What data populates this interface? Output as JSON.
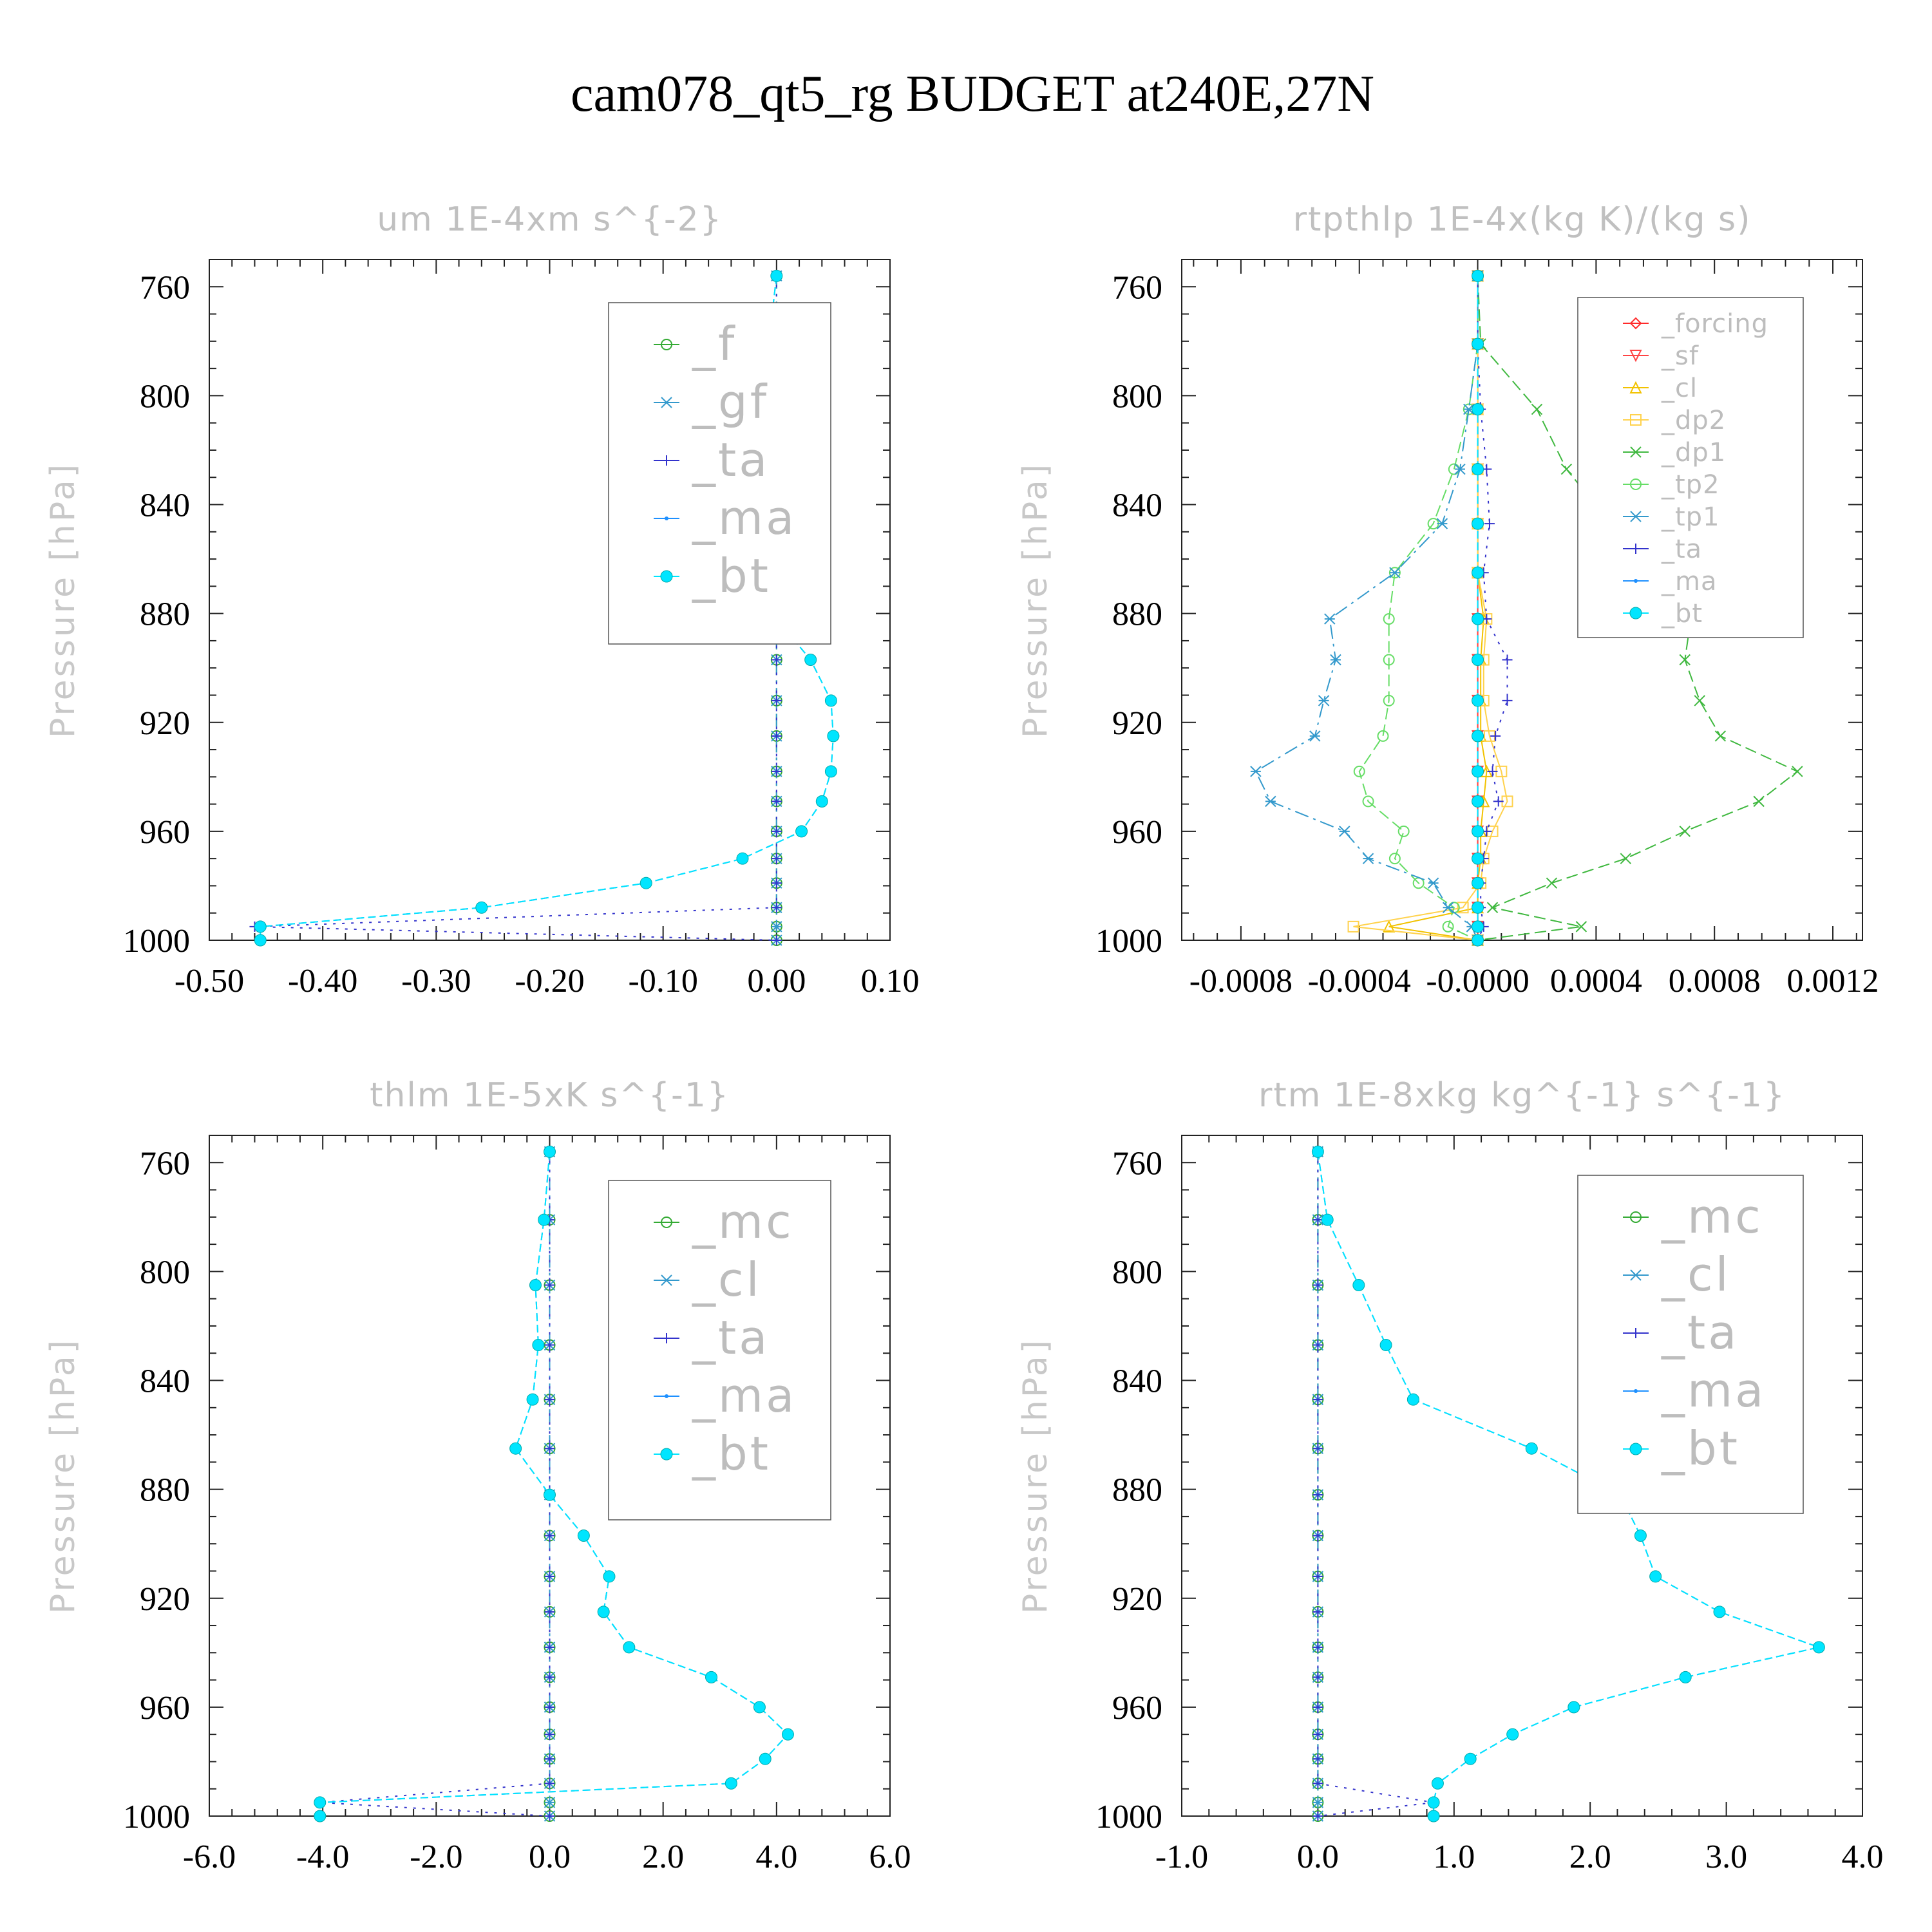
{
  "figure_title": "cam078_qt5_rg  BUDGET at240E,27N",
  "colors": {
    "bt": "#00e5ff",
    "ma": "#1e90ff",
    "ta": "#3333cc",
    "zero": "#33aa33",
    "legend_text": "#bdbdbd",
    "forcing": "#ff2a2a",
    "sf": "#ff4444",
    "cl_y": "#f2c200",
    "dp2": "#ffd24d",
    "dp1": "#3fb83f",
    "tp2": "#66dd66",
    "tp1": "#3399cc"
  },
  "chart_data": [
    {
      "type": "line",
      "title": "um  1E-4xm s^{-2}",
      "ylabel": "Pressure [hPa]",
      "xlim": [
        -0.5,
        0.1
      ],
      "ylim": [
        750,
        1000
      ],
      "xticks": [
        "-0.50",
        "-0.40",
        "-0.30",
        "-0.20",
        "-0.10",
        "0.00",
        "0.10"
      ],
      "xtick_values": [
        -0.5,
        -0.4,
        -0.3,
        -0.2,
        -0.1,
        0.0,
        0.1
      ],
      "yticks": [
        "760",
        "800",
        "840",
        "880",
        "920",
        "960",
        "1000"
      ],
      "legend": [
        "_f",
        "_gf",
        "_ta",
        "_ma",
        "_bt"
      ],
      "legend_size": "large",
      "levels": [
        756,
        781,
        805,
        827,
        847,
        865,
        882,
        897,
        912,
        925,
        938,
        949,
        960,
        970,
        979,
        988,
        995,
        1000
      ],
      "series": [
        {
          "name": "_f",
          "values": [
            0,
            0,
            0,
            0,
            0,
            0,
            0,
            0,
            0,
            0,
            0,
            0,
            0,
            0,
            0,
            0,
            0,
            0
          ]
        },
        {
          "name": "_gf",
          "values": [
            0,
            0,
            0,
            0,
            0,
            0,
            0,
            0,
            0,
            0,
            0,
            0,
            0,
            0,
            0,
            0,
            0,
            0
          ]
        },
        {
          "name": "_ta",
          "values": [
            0,
            0,
            0,
            0,
            0,
            0,
            0,
            0,
            0,
            0,
            0,
            0,
            0,
            0,
            0,
            0,
            -0.46,
            0
          ]
        },
        {
          "name": "_ma",
          "values": [
            0,
            -0.007,
            -0.015,
            -0.013,
            -0.012,
            -0.028,
            0.0,
            0.03,
            0.048,
            0.05,
            0.048,
            0.04,
            0.022,
            -0.03,
            -0.115,
            -0.26,
            -0.455,
            -0.455
          ]
        },
        {
          "name": "_bt",
          "values": [
            0,
            -0.007,
            -0.015,
            -0.013,
            -0.012,
            -0.028,
            0.0,
            0.03,
            0.048,
            0.05,
            0.048,
            0.04,
            0.022,
            -0.03,
            -0.115,
            -0.26,
            -0.455,
            -0.455
          ]
        }
      ]
    },
    {
      "type": "line",
      "title": "rtpthlp  1E-4x(kg K)/(kg s)",
      "ylabel": "Pressure [hPa]",
      "xlim": [
        -0.001,
        0.0013
      ],
      "ylim": [
        750,
        1000
      ],
      "xticks": [
        "-0.0008",
        "-0.0004",
        "-0.0000",
        "0.0004",
        "0.0008",
        "0.0012"
      ],
      "xtick_values": [
        -0.0008,
        -0.0004,
        0.0,
        0.0004,
        0.0008,
        0.0012
      ],
      "yticks": [
        "760",
        "800",
        "840",
        "880",
        "920",
        "960",
        "1000"
      ],
      "legend": [
        "_forcing",
        "_sf",
        "_cl",
        "_dp2",
        "_dp1",
        "_tp2",
        "_tp1",
        "_ta",
        "_ma",
        "_bt"
      ],
      "legend_size": "small",
      "levels": [
        756,
        781,
        805,
        827,
        847,
        865,
        882,
        897,
        912,
        925,
        938,
        949,
        960,
        970,
        979,
        988,
        995,
        1000
      ],
      "series": [
        {
          "name": "_forcing",
          "values": [
            0,
            0,
            0,
            0,
            0,
            0,
            0,
            0,
            0,
            0,
            0,
            0,
            0,
            0,
            0,
            0,
            0,
            0
          ]
        },
        {
          "name": "_sf",
          "values": [
            0,
            0,
            0,
            0,
            0,
            0,
            0,
            0,
            0,
            0,
            0,
            0,
            0,
            0,
            0,
            0,
            0,
            0
          ]
        },
        {
          "name": "_cl",
          "values": [
            0,
            0,
            0,
            0,
            0,
            0,
            2e-05,
            1e-05,
            1e-05,
            1e-05,
            3e-05,
            2e-05,
            1e-05,
            1e-05,
            0,
            0,
            -0.0003,
            0
          ]
        },
        {
          "name": "_dp2",
          "values": [
            0,
            0,
            0,
            0,
            0,
            0,
            3e-05,
            2e-05,
            2e-05,
            4e-05,
            8e-05,
            0.0001,
            5e-05,
            2e-05,
            1e-05,
            -5e-05,
            -0.00042,
            0
          ]
        },
        {
          "name": "_dp1",
          "values": [
            0,
            1e-05,
            0.0002,
            0.0003,
            0.00045,
            0.0006,
            0.00072,
            0.0007,
            0.00075,
            0.00082,
            0.00108,
            0.00095,
            0.0007,
            0.0005,
            0.00025,
            5e-05,
            0.00035,
            0
          ]
        },
        {
          "name": "_tp2",
          "values": [
            0,
            0,
            -3e-05,
            -8e-05,
            -0.00015,
            -0.00028,
            -0.0003,
            -0.0003,
            -0.0003,
            -0.00032,
            -0.0004,
            -0.00037,
            -0.00025,
            -0.00028,
            -0.0002,
            -8e-05,
            -0.0001,
            0
          ]
        },
        {
          "name": "_tp1",
          "values": [
            0,
            0,
            -3e-05,
            -6e-05,
            -0.00012,
            -0.00028,
            -0.0005,
            -0.00048,
            -0.00052,
            -0.00055,
            -0.00075,
            -0.0007,
            -0.00045,
            -0.00037,
            -0.00015,
            -0.0001,
            -2e-05,
            0
          ]
        },
        {
          "name": "_ta",
          "values": [
            0,
            0,
            1e-05,
            3e-05,
            4e-05,
            2e-05,
            3e-05,
            0.0001,
            0.0001,
            6e-05,
            5e-05,
            7e-05,
            3e-05,
            2e-05,
            1e-05,
            1e-05,
            2e-05,
            0
          ]
        },
        {
          "name": "_ma",
          "values": [
            0,
            0,
            0,
            0,
            0,
            0,
            0,
            0,
            0,
            0,
            0,
            0,
            0,
            0,
            0,
            0,
            0,
            0
          ]
        },
        {
          "name": "_bt",
          "values": [
            0,
            0,
            0,
            0,
            0,
            0,
            0,
            0,
            0,
            0,
            0,
            0,
            0,
            0,
            0,
            0,
            0,
            0
          ]
        }
      ]
    },
    {
      "type": "line",
      "title": "thlm  1E-5xK s^{-1}",
      "ylabel": "Pressure [hPa]",
      "xlim": [
        -6,
        6
      ],
      "ylim": [
        750,
        1000
      ],
      "xticks": [
        "-6.0",
        "-4.0",
        "-2.0",
        "0.0",
        "2.0",
        "4.0",
        "6.0"
      ],
      "xtick_values": [
        -6,
        -4,
        -2,
        0,
        2,
        4,
        6
      ],
      "yticks": [
        "760",
        "800",
        "840",
        "880",
        "920",
        "960",
        "1000"
      ],
      "legend": [
        "_mc",
        "_cl",
        "_ta",
        "_ma",
        "_bt"
      ],
      "legend_size": "large",
      "levels": [
        756,
        781,
        805,
        827,
        847,
        865,
        882,
        897,
        912,
        925,
        938,
        949,
        960,
        970,
        979,
        988,
        995,
        1000
      ],
      "series": [
        {
          "name": "_mc",
          "values": [
            0,
            0,
            0,
            0,
            0,
            0,
            0,
            0,
            0,
            0,
            0,
            0,
            0,
            0,
            0,
            0,
            0,
            0
          ]
        },
        {
          "name": "_cl",
          "values": [
            0,
            0,
            0,
            0,
            0,
            0,
            0,
            0,
            0,
            0,
            0,
            0,
            0,
            0,
            0,
            0,
            0,
            0
          ]
        },
        {
          "name": "_ta",
          "values": [
            0,
            0,
            0,
            0,
            0,
            0,
            0,
            0,
            0,
            0,
            0,
            0,
            0,
            0,
            0,
            0,
            -4.05,
            0
          ]
        },
        {
          "name": "_ma",
          "values": [
            0,
            -0.1,
            -0.25,
            -0.2,
            -0.3,
            -0.6,
            0,
            0.6,
            1.05,
            0.95,
            1.4,
            2.85,
            3.7,
            4.2,
            3.8,
            3.2,
            -4.05,
            -4.05
          ]
        },
        {
          "name": "_bt",
          "values": [
            0,
            -0.1,
            -0.25,
            -0.2,
            -0.3,
            -0.6,
            0,
            0.6,
            1.05,
            0.95,
            1.4,
            2.85,
            3.7,
            4.2,
            3.8,
            3.2,
            -4.05,
            -4.05
          ]
        }
      ]
    },
    {
      "type": "line",
      "title": "rtm  1E-8xkg kg^{-1} s^{-1}",
      "ylabel": "Pressure [hPa]",
      "xlim": [
        -1,
        4
      ],
      "ylim": [
        750,
        1000
      ],
      "xticks": [
        "-1.0",
        "0.0",
        "1.0",
        "2.0",
        "3.0",
        "4.0"
      ],
      "xtick_values": [
        -1,
        0,
        1,
        2,
        3,
        4
      ],
      "yticks": [
        "760",
        "800",
        "840",
        "880",
        "920",
        "960",
        "1000"
      ],
      "legend": [
        "_mc",
        "_cl",
        "_ta",
        "_ma",
        "_bt"
      ],
      "legend_size": "large",
      "levels": [
        756,
        781,
        805,
        827,
        847,
        865,
        882,
        897,
        912,
        925,
        938,
        949,
        960,
        970,
        979,
        988,
        995,
        1000
      ],
      "series": [
        {
          "name": "_mc",
          "values": [
            0,
            0,
            0,
            0,
            0,
            0,
            0,
            0,
            0,
            0,
            0,
            0,
            0,
            0,
            0,
            0,
            0,
            0
          ]
        },
        {
          "name": "_cl",
          "values": [
            0,
            0,
            0,
            0,
            0,
            0,
            0,
            0,
            0,
            0,
            0,
            0,
            0,
            0,
            0,
            0,
            0,
            0
          ]
        },
        {
          "name": "_ta",
          "values": [
            0,
            0,
            0,
            0,
            0,
            0,
            0,
            0,
            0,
            0,
            0,
            0,
            0,
            0,
            0,
            0,
            0.85,
            0
          ]
        },
        {
          "name": "_ma",
          "values": [
            0,
            0.07,
            0.3,
            0.5,
            0.7,
            1.57,
            2.22,
            2.37,
            2.48,
            2.95,
            3.68,
            2.7,
            1.88,
            1.43,
            1.12,
            0.88,
            0.85,
            0.85
          ]
        },
        {
          "name": "_bt",
          "values": [
            0,
            0.07,
            0.3,
            0.5,
            0.7,
            1.57,
            2.22,
            2.37,
            2.48,
            2.95,
            3.68,
            2.7,
            1.88,
            1.43,
            1.12,
            0.88,
            0.85,
            0.85
          ]
        }
      ]
    }
  ]
}
